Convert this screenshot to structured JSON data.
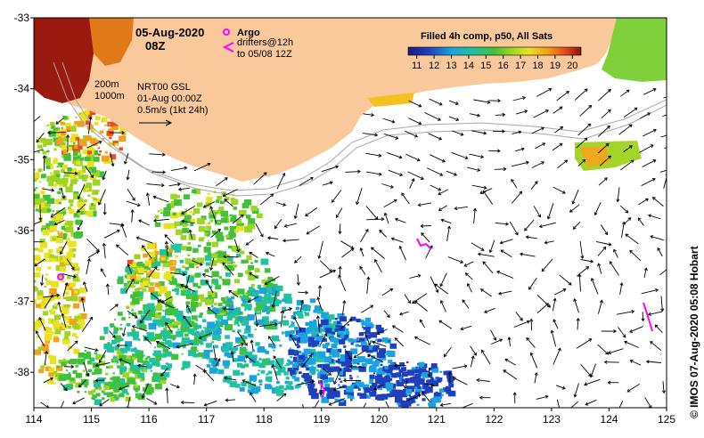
{
  "map": {
    "date_title": "05-Aug-2020",
    "time_title": "08Z",
    "argo_label": "Argo",
    "drifters_label": "drifters@12h",
    "drifters_to_label": "to 05/08 12Z",
    "isobath_200": "200m",
    "isobath_1000": "1000m",
    "product": "NRT00 GSL",
    "product_time": "01-Aug 00:00Z",
    "velocity_scale": "0.5m/s (1kt 24h)",
    "colorbar_title": "Filled 4h comp, p50, All Sats",
    "colorbar_ticks": [
      "11",
      "12",
      "13",
      "14",
      "15",
      "16",
      "17",
      "18",
      "19",
      "20"
    ],
    "colorbar_range": [
      10.5,
      20.5
    ],
    "credit": "© IMOS 07-Aug-2020 05:08 Hobart",
    "lon_ticks": [
      "114",
      "115",
      "116",
      "117",
      "118",
      "119",
      "120",
      "121",
      "122",
      "123",
      "124",
      "125"
    ],
    "lat_ticks": [
      "-33",
      "-34",
      "-35",
      "-36",
      "-37",
      "-38"
    ],
    "lon_range": [
      114,
      125
    ],
    "lat_range": [
      -38.5,
      -33
    ],
    "colors": {
      "land": "#f9c99b",
      "argo": "#ff00ff",
      "drifter": "#ff00ff",
      "isobath": "#a8a8a8",
      "arrow": "#000000",
      "cold": "#0a1a8c",
      "warm": "#9b1a10"
    }
  }
}
